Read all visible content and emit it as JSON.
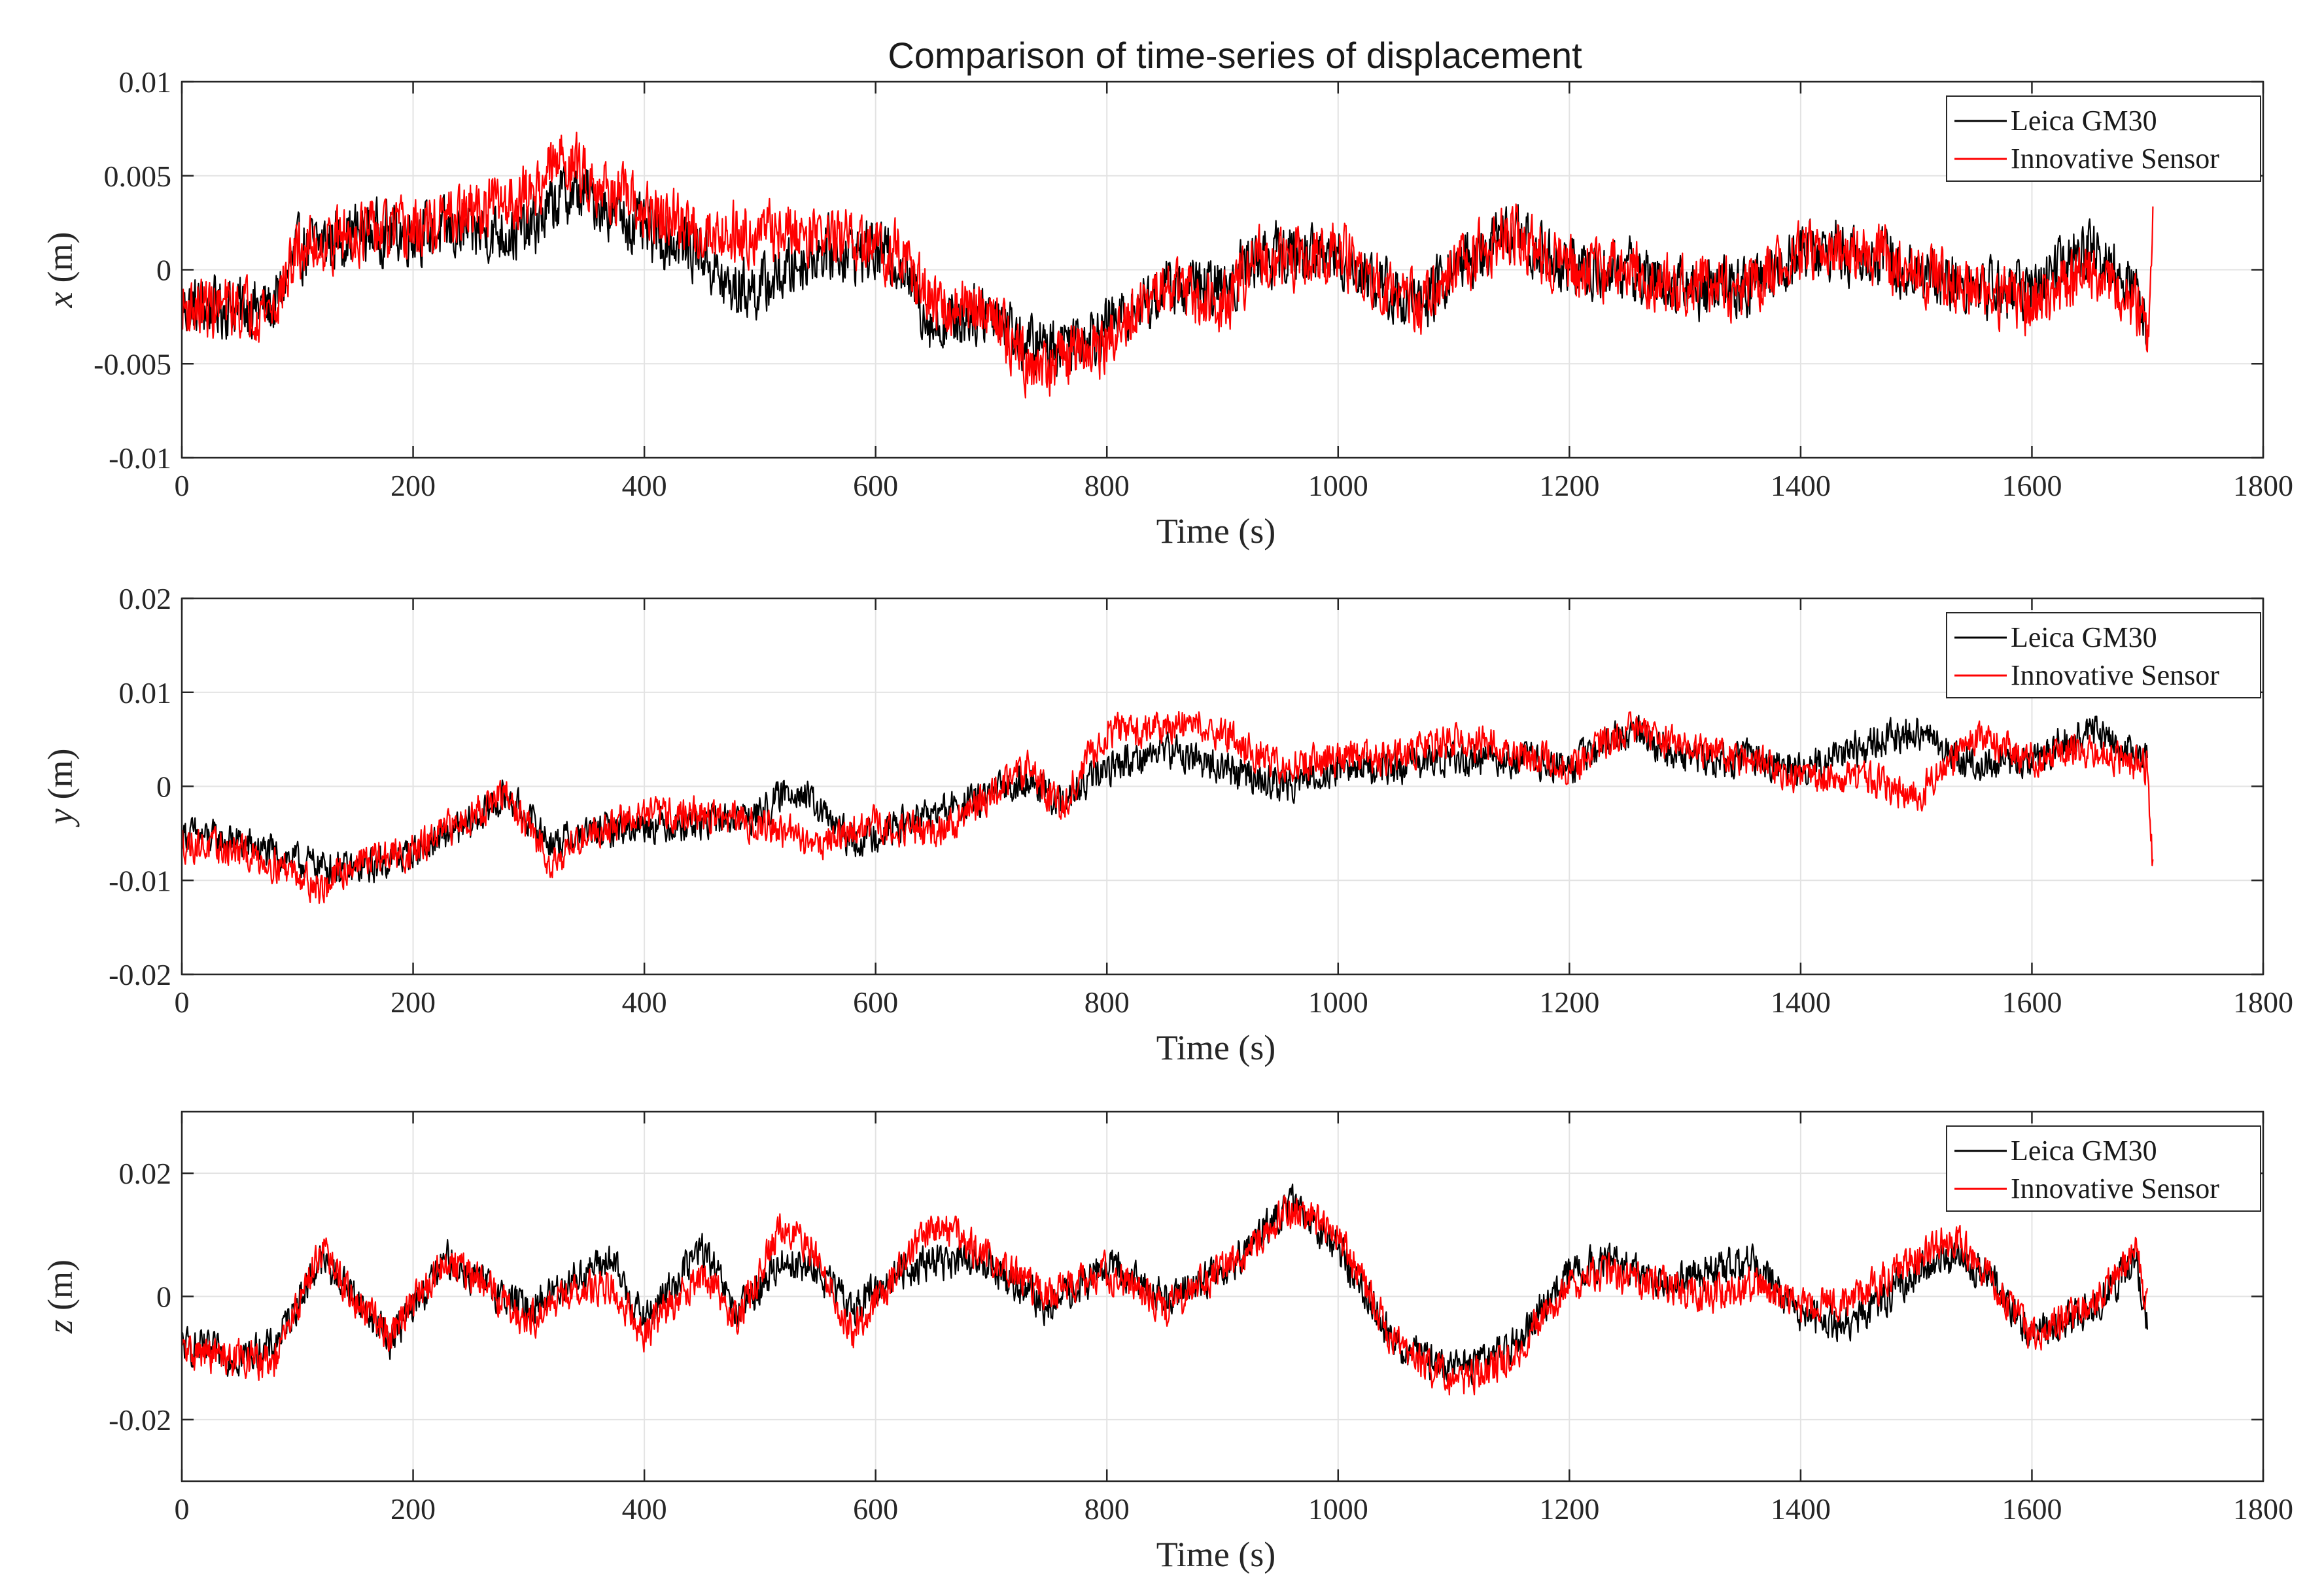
{
  "chart_data": [
    {
      "type": "line",
      "title": "Comparison of time-series of displacement",
      "xlabel": "Time (s)",
      "ylabel_var": "x",
      "ylabel_unit": "(m)",
      "xlim": [
        0,
        1800
      ],
      "ylim": [
        -0.01,
        0.01
      ],
      "xticks": [
        0,
        200,
        400,
        600,
        800,
        1000,
        1200,
        1400,
        1600,
        1800
      ],
      "xtick_labels": [
        "0",
        "200",
        "400",
        "600",
        "800",
        "1000",
        "1200",
        "1400",
        "1600",
        "1800"
      ],
      "yticks": [
        -0.01,
        -0.005,
        0,
        0.005,
        0.01
      ],
      "ytick_labels": [
        "-0.01",
        "-0.005",
        "0",
        "0.005",
        "0.01"
      ],
      "grid": true,
      "legend_position": "top-right",
      "noise_amplitude": 0.0022,
      "series": [
        {
          "name": "Leica GM30",
          "color": "#000000",
          "x": [
            0,
            50,
            80,
            100,
            150,
            200,
            250,
            300,
            330,
            350,
            400,
            450,
            470,
            500,
            550,
            600,
            620,
            650,
            700,
            730,
            750,
            800,
            850,
            900,
            930,
            1000,
            1040,
            1070,
            1100,
            1150,
            1200,
            1250,
            1300,
            1350,
            1400,
            1450,
            1500,
            1550,
            1600,
            1650,
            1690,
            1700
          ],
          "y": [
            -0.002,
            -0.002,
            -0.002,
            0.001,
            0.002,
            0.002,
            0.002,
            0.002,
            0.004,
            0.004,
            0.002,
            0.001,
            -0.001,
            -0.001,
            0.001,
            0.001,
            0.0005,
            -0.003,
            -0.002,
            -0.004,
            -0.004,
            -0.003,
            -0.001,
            -0.001,
            0.0008,
            0.0008,
            -0.001,
            -0.002,
            0,
            0.002,
            0,
            0,
            -0.001,
            -0.001,
            0.001,
            0.001,
            0,
            -0.001,
            -0.001,
            0.001,
            -0.001,
            -0.003
          ]
        },
        {
          "name": "Innovative Sensor",
          "color": "#ff0000",
          "x": [
            0,
            50,
            80,
            100,
            150,
            200,
            250,
            300,
            330,
            350,
            400,
            450,
            500,
            550,
            600,
            620,
            650,
            700,
            730,
            750,
            800,
            850,
            900,
            930,
            1000,
            1040,
            1070,
            1100,
            1150,
            1200,
            1250,
            1300,
            1350,
            1400,
            1450,
            1500,
            1550,
            1600,
            1650,
            1690,
            1700,
            1705
          ],
          "y": [
            -0.002,
            -0.002,
            -0.002,
            0.001,
            0.002,
            0.002,
            0.003,
            0.004,
            0.006,
            0.005,
            0.003,
            0.002,
            0.002,
            0.002,
            0.001,
            0.001,
            -0.002,
            -0.002,
            -0.005,
            -0.005,
            -0.004,
            -0.001,
            -0.002,
            0.0005,
            0.0008,
            -0.001,
            -0.002,
            0,
            0.002,
            0,
            0,
            -0.001,
            -0.001,
            0.001,
            0.001,
            0,
            -0.001,
            -0.002,
            0,
            -0.002,
            -0.004,
            0.004
          ]
        }
      ]
    },
    {
      "type": "line",
      "title": "",
      "xlabel": "Time (s)",
      "ylabel_var": "y",
      "ylabel_unit": "(m)",
      "xlim": [
        0,
        1800
      ],
      "ylim": [
        -0.02,
        0.02
      ],
      "xticks": [
        0,
        200,
        400,
        600,
        800,
        1000,
        1200,
        1400,
        1600,
        1800
      ],
      "xtick_labels": [
        "0",
        "200",
        "400",
        "600",
        "800",
        "1000",
        "1200",
        "1400",
        "1600",
        "1800"
      ],
      "yticks": [
        -0.02,
        -0.01,
        0,
        0.01,
        0.02
      ],
      "ytick_labels": [
        "-0.02",
        "-0.01",
        "0",
        "0.01",
        "0.02"
      ],
      "grid": true,
      "legend_position": "top-right",
      "noise_amplitude": 0.0025,
      "series": [
        {
          "name": "Leica GM30",
          "color": "#000000",
          "x": [
            0,
            50,
            100,
            150,
            200,
            250,
            280,
            320,
            350,
            400,
            450,
            500,
            530,
            580,
            600,
            650,
            700,
            730,
            760,
            800,
            850,
            900,
            950,
            1000,
            1050,
            1100,
            1150,
            1200,
            1250,
            1300,
            1350,
            1400,
            1450,
            1500,
            1550,
            1600,
            1650,
            1700
          ],
          "y": [
            -0.005,
            -0.006,
            -0.008,
            -0.009,
            -0.007,
            -0.004,
            -0.001,
            -0.006,
            -0.005,
            -0.004,
            -0.004,
            -0.003,
            0,
            -0.006,
            -0.005,
            -0.003,
            -0.001,
            0.001,
            -0.002,
            0.002,
            0.004,
            0.002,
            0,
            0.002,
            0.002,
            0.003,
            0.003,
            0.002,
            0.006,
            0.003,
            0.003,
            0.002,
            0.004,
            0.006,
            0.002,
            0.003,
            0.006,
            0.003
          ]
        },
        {
          "name": "Innovative Sensor",
          "color": "#ff0000",
          "x": [
            0,
            50,
            100,
            120,
            150,
            200,
            250,
            280,
            320,
            350,
            400,
            450,
            500,
            550,
            600,
            650,
            700,
            730,
            760,
            800,
            850,
            880,
            950,
            1000,
            1050,
            1100,
            1150,
            1200,
            1250,
            1300,
            1350,
            1400,
            1450,
            1500,
            1550,
            1600,
            1650,
            1700,
            1705
          ],
          "y": [
            -0.006,
            -0.007,
            -0.009,
            -0.011,
            -0.008,
            -0.007,
            -0.003,
            -0.001,
            -0.008,
            -0.005,
            -0.003,
            -0.003,
            -0.004,
            -0.006,
            -0.004,
            -0.005,
            -0.001,
            0.002,
            -0.002,
            0.006,
            0.006,
            0.007,
            0.002,
            0.003,
            0.003,
            0.005,
            0.004,
            0.002,
            0.006,
            0.004,
            0.003,
            0.001,
            0.001,
            -0.001,
            0.005,
            0.003,
            0.004,
            0.002,
            -0.01
          ]
        }
      ]
    },
    {
      "type": "line",
      "title": "",
      "xlabel": "Time (s)",
      "ylabel_var": "z",
      "ylabel_unit": "(m)",
      "xlim": [
        0,
        1800
      ],
      "ylim": [
        -0.03,
        0.03
      ],
      "xticks": [
        0,
        200,
        400,
        600,
        800,
        1000,
        1200,
        1400,
        1600,
        1800
      ],
      "xtick_labels": [
        "0",
        "200",
        "400",
        "600",
        "800",
        "1000",
        "1200",
        "1400",
        "1600",
        "1800"
      ],
      "yticks": [
        -0.02,
        0,
        0.02
      ],
      "ytick_labels": [
        "-0.02",
        "0",
        "0.02"
      ],
      "grid": true,
      "legend_position": "top-right",
      "noise_amplitude": 0.004,
      "series": [
        {
          "name": "Leica GM30",
          "color": "#000000",
          "x": [
            0,
            50,
            80,
            120,
            150,
            180,
            230,
            260,
            300,
            330,
            370,
            400,
            450,
            480,
            520,
            550,
            580,
            620,
            650,
            700,
            750,
            800,
            850,
            900,
            960,
            1000,
            1050,
            1100,
            1150,
            1200,
            1230,
            1280,
            1320,
            1360,
            1400,
            1450,
            1500,
            1530,
            1560,
            1600,
            1650,
            1690,
            1700
          ],
          "y": [
            -0.008,
            -0.01,
            -0.008,
            0.006,
            0,
            -0.007,
            0.006,
            0.002,
            -0.002,
            0.002,
            0.006,
            -0.004,
            0.008,
            -0.003,
            0.006,
            0.004,
            -0.002,
            0.004,
            0.006,
            0.005,
            -0.002,
            0.005,
            0,
            0.004,
            0.015,
            0.008,
            -0.008,
            -0.012,
            -0.008,
            0.004,
            0.006,
            0.002,
            0.004,
            0.006,
            -0.004,
            -0.004,
            0.004,
            0.006,
            0.004,
            -0.007,
            -0.002,
            0.006,
            -0.004
          ]
        },
        {
          "name": "Innovative Sensor",
          "color": "#ff0000",
          "x": [
            0,
            50,
            80,
            120,
            150,
            180,
            230,
            260,
            300,
            330,
            370,
            400,
            450,
            480,
            520,
            550,
            580,
            620,
            650,
            700,
            750,
            800,
            850,
            900,
            960,
            1000,
            1050,
            1100,
            1150,
            1200,
            1230,
            1280,
            1320,
            1360,
            1400,
            1450,
            1500,
            1530,
            1560,
            1600,
            1650,
            1690,
            1700
          ],
          "y": [
            -0.009,
            -0.01,
            -0.011,
            0.008,
            -0.001,
            -0.006,
            0.006,
            0.002,
            -0.004,
            0,
            0.002,
            -0.006,
            0.004,
            -0.004,
            0.012,
            0.006,
            -0.006,
            0.004,
            0.012,
            0.006,
            0,
            0.004,
            -0.002,
            0.004,
            0.014,
            0.01,
            -0.008,
            -0.014,
            -0.01,
            0.002,
            0.004,
            0.002,
            0,
            0.002,
            -0.002,
            0,
            0.006,
            0.01,
            0.004,
            -0.006,
            -0.002,
            0.007,
            -0.002
          ]
        }
      ]
    }
  ]
}
